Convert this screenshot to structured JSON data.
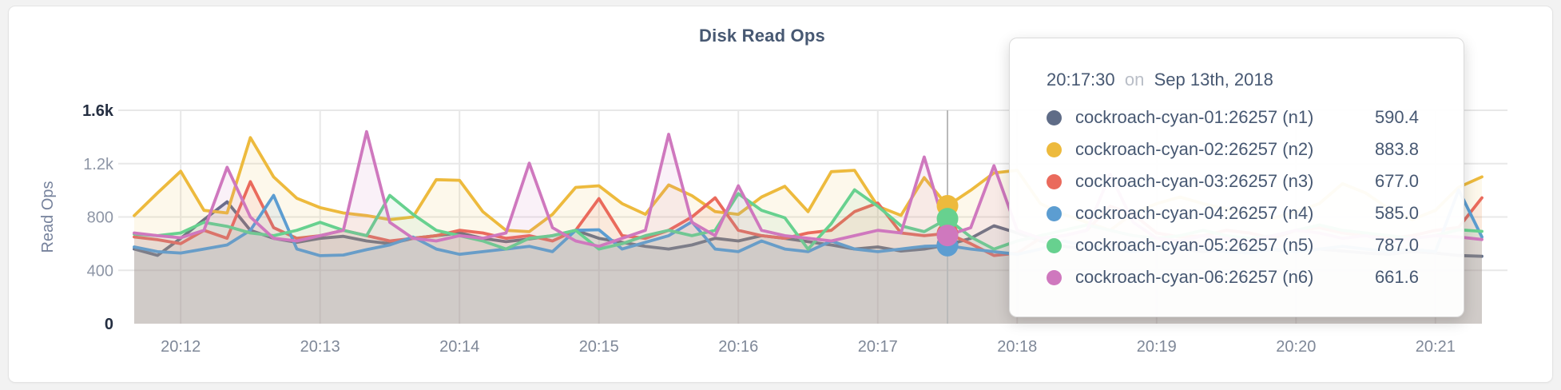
{
  "card": {
    "title": "Disk Read Ops"
  },
  "tooltip": {
    "time": "20:17:30",
    "conjunction": "on",
    "date": "Sep 13th, 2018",
    "rows": [
      {
        "label": "cockroach-cyan-01:26257 (n1)",
        "value": "590.4",
        "color": "#5F6C87"
      },
      {
        "label": "cockroach-cyan-02:26257 (n2)",
        "value": "883.8",
        "color": "#EDBA3D"
      },
      {
        "label": "cockroach-cyan-03:26257 (n3)",
        "value": "677.0",
        "color": "#EA6A5C"
      },
      {
        "label": "cockroach-cyan-04:26257 (n4)",
        "value": "585.0",
        "color": "#5C9DD1"
      },
      {
        "label": "cockroach-cyan-05:26257 (n5)",
        "value": "787.0",
        "color": "#67D18F"
      },
      {
        "label": "cockroach-cyan-06:26257 (n6)",
        "value": "661.6",
        "color": "#CF78BE"
      }
    ]
  },
  "chart_data": {
    "type": "area",
    "title": "Disk Read Ops",
    "ylabel": "Read Ops",
    "ylim": [
      0,
      1600
    ],
    "grid": true,
    "sample_interval_seconds": 10,
    "start_time": "20:11:40",
    "y_ticks": [
      {
        "label": "0",
        "value": 0,
        "bold": true
      },
      {
        "label": "400",
        "value": 400,
        "bold": false
      },
      {
        "label": "800",
        "value": 800,
        "bold": false
      },
      {
        "label": "1.2k",
        "value": 1200,
        "bold": false
      },
      {
        "label": "1.6k",
        "value": 1600,
        "bold": true
      }
    ],
    "x_ticks": [
      {
        "label": "20:12",
        "t": 20
      },
      {
        "label": "20:13",
        "t": 80
      },
      {
        "label": "20:14",
        "t": 140
      },
      {
        "label": "20:15",
        "t": 200
      },
      {
        "label": "20:16",
        "t": 260
      },
      {
        "label": "20:17",
        "t": 320
      },
      {
        "label": "20:18",
        "t": 380
      },
      {
        "label": "20:19",
        "t": 440
      },
      {
        "label": "20:20",
        "t": 500
      },
      {
        "label": "20:21",
        "t": 560
      }
    ],
    "hover": {
      "index": 35,
      "time": "20:17:30",
      "date": "Sep 13th, 2018",
      "line_color": "#b9b9b9"
    },
    "fill_opacity": 0.1,
    "series": [
      {
        "name": "cockroach-cyan-01:26257 (n1)",
        "color": "#5F6C87",
        "values": [
          560,
          512,
          640,
          780,
          914,
          700,
          640,
          610,
          640,
          655,
          620,
          600,
          640,
          660,
          680,
          640,
          615,
          635,
          660,
          700,
          640,
          610,
          580,
          560,
          590,
          640,
          620,
          660,
          640,
          615,
          590,
          560,
          575,
          545,
          560,
          590.4,
          640,
          734,
          680,
          620,
          580,
          560,
          590,
          615,
          580,
          560,
          540,
          560,
          580,
          555,
          540,
          560,
          545,
          530,
          520,
          540,
          530,
          511,
          505
        ]
      },
      {
        "name": "cockroach-cyan-02:26257 (n2)",
        "color": "#EDBA3D",
        "values": [
          810,
          980,
          1143,
          850,
          830,
          1395,
          1100,
          940,
          870,
          830,
          810,
          780,
          800,
          1080,
          1075,
          840,
          700,
          690,
          820,
          1022,
          1034,
          900,
          820,
          1040,
          960,
          840,
          820,
          950,
          1030,
          840,
          1140,
          1150,
          880,
          812,
          1095,
          883.8,
          1000,
          1130,
          1150,
          900,
          820,
          760,
          700,
          830,
          900,
          950,
          900,
          860,
          820,
          790,
          840,
          900,
          1050,
          980,
          860,
          780,
          850,
          1023,
          1101
        ]
      },
      {
        "name": "cockroach-cyan-03:26257 (n3)",
        "color": "#EA6A5C",
        "values": [
          650,
          630,
          600,
          700,
          640,
          1065,
          720,
          640,
          660,
          700,
          660,
          620,
          640,
          660,
          700,
          680,
          640,
          660,
          620,
          700,
          938,
          660,
          640,
          700,
          800,
          944,
          700,
          660,
          640,
          680,
          700,
          840,
          905,
          680,
          660,
          677.0,
          600,
          511,
          530,
          640,
          660,
          700,
          880,
          820,
          680,
          650,
          660,
          700,
          680,
          640,
          700,
          720,
          680,
          660,
          640,
          660,
          700,
          722,
          944
        ]
      },
      {
        "name": "cockroach-cyan-04:26257 (n4)",
        "color": "#5C9DD1",
        "values": [
          575,
          540,
          530,
          560,
          590,
          700,
          962,
          560,
          510,
          515,
          555,
          590,
          650,
          560,
          520,
          540,
          560,
          580,
          540,
          700,
          704,
          560,
          610,
          660,
          764,
          560,
          540,
          620,
          560,
          540,
          620,
          560,
          540,
          560,
          580,
          585.0,
          560,
          540,
          520,
          560,
          620,
          580,
          560,
          540,
          560,
          580,
          560,
          540,
          530,
          560,
          540,
          560,
          580,
          560,
          540,
          560,
          540,
          1004,
          650
        ]
      },
      {
        "name": "cockroach-cyan-05:26257 (n5)",
        "color": "#67D18F",
        "values": [
          672,
          660,
          680,
          760,
          730,
          680,
          660,
          700,
          760,
          700,
          660,
          962,
          820,
          700,
          660,
          620,
          560,
          640,
          660,
          700,
          560,
          600,
          660,
          700,
          660,
          700,
          975,
          850,
          794,
          559,
          750,
          1004,
          880,
          734,
          690,
          787.0,
          650,
          559,
          620,
          660,
          700,
          740,
          700,
          660,
          640,
          660,
          700,
          660,
          640,
          660,
          700,
          740,
          700,
          680,
          660,
          640,
          660,
          704,
          692
        ]
      },
      {
        "name": "cockroach-cyan-06:26257 (n6)",
        "color": "#CF78BE",
        "values": [
          680,
          660,
          644,
          700,
          1173,
          800,
          640,
          620,
          660,
          700,
          1440,
          760,
          640,
          620,
          660,
          640,
          680,
          1203,
          720,
          620,
          580,
          640,
          700,
          1420,
          760,
          660,
          1034,
          700,
          660,
          640,
          620,
          660,
          700,
          680,
          1250,
          661.6,
          720,
          1185,
          700,
          640,
          660,
          700,
          1120,
          760,
          640,
          620,
          660,
          640,
          620,
          660,
          700,
          680,
          640,
          660,
          620,
          640,
          660,
          650,
          631
        ]
      }
    ]
  }
}
